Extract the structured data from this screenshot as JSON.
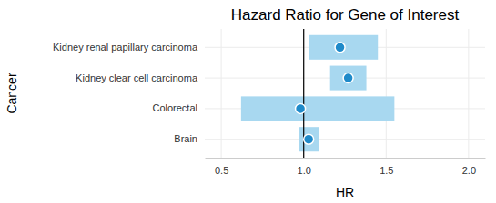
{
  "chart_data": {
    "type": "interval",
    "orientation": "horizontal",
    "title": "Hazard Ratio for Gene of Interest",
    "x_label": "HR",
    "y_label": "Cancer",
    "categories": [
      "Kidney renal papillary carcinoma",
      "Kidney clear cell carcinoma",
      "Colorectal",
      "Brain"
    ],
    "values": [
      1.22,
      1.27,
      0.98,
      1.03
    ],
    "lower": [
      1.03,
      1.16,
      0.62,
      0.97
    ],
    "upper": [
      1.45,
      1.38,
      1.55,
      1.09
    ],
    "reference_line": 1,
    "color": "#a8d8f0",
    "marker_color": "#1f8ac9",
    "xlim": [
      0.4,
      2.1
    ],
    "xticks": [
      0.5,
      {
        "value": 1,
        "label": "1.0"
      },
      1.5,
      {
        "value": 2,
        "label": "2.0"
      }
    ],
    "grid": true
  }
}
